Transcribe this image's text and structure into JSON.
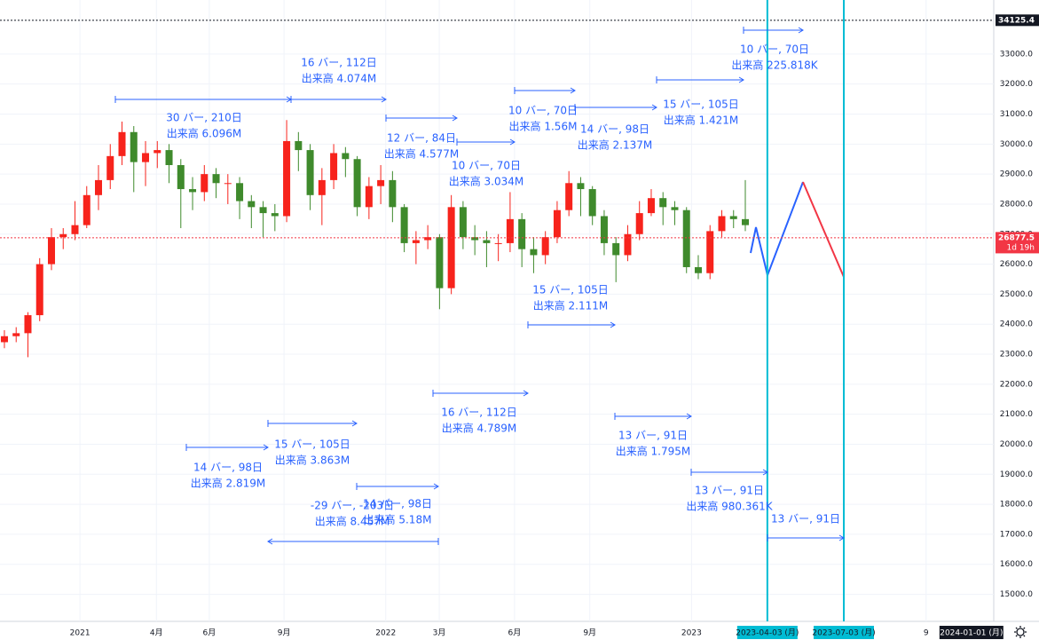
{
  "chart_data": {
    "type": "candlestick",
    "x": [
      0.75,
      2.75,
      4.75,
      6.75,
      8.75,
      10.75,
      12.75,
      14.75,
      16.75,
      18.75,
      20.75,
      22.75,
      24.75,
      26.75,
      28.75,
      30.75,
      32.75,
      34.75,
      36.75,
      38.75,
      40.75,
      42.75,
      44.75,
      46.75,
      48.75,
      50.75,
      52.75,
      54.75,
      56.75,
      58.75,
      60.75,
      62.75,
      64.75,
      66.75,
      68.75,
      70.75,
      72.75,
      74.75,
      76.75,
      78.75,
      80.75,
      82.75,
      84.75,
      86.75,
      88.75,
      90.75,
      92.75,
      94.75,
      96.75,
      98.75,
      100.75,
      102.75,
      104.75,
      106.75,
      108.75,
      110.75,
      112.75,
      114.75,
      116.75,
      118.75,
      120.75,
      122.75,
      124.75,
      126.75
    ],
    "open": [
      23400,
      23600,
      23700,
      24300,
      26000,
      26900,
      27000,
      27300,
      28300,
      28800,
      29600,
      30400,
      29400,
      29700,
      29800,
      29300,
      28500,
      28400,
      29000,
      28700,
      28700,
      28100,
      27900,
      27700,
      27600,
      30100,
      29800,
      28300,
      28800,
      29700,
      29500,
      27900,
      28600,
      28800,
      27900,
      26700,
      26800,
      26900,
      25200,
      27900,
      26900,
      26800,
      26700,
      26700,
      27500,
      26500,
      26300,
      26900,
      27800,
      28700,
      28500,
      27600,
      26700,
      26300,
      27000,
      27700,
      28200,
      27900,
      27800,
      25900,
      25700,
      27100,
      27600,
      27500
    ],
    "high": [
      23800,
      23900,
      24400,
      26200,
      27200,
      27200,
      28100,
      28600,
      29300,
      30000,
      30750,
      30600,
      30100,
      30100,
      30000,
      29500,
      28900,
      29300,
      29200,
      29000,
      28900,
      28300,
      28100,
      28000,
      30800,
      30400,
      30000,
      29200,
      30000,
      29900,
      29600,
      28900,
      29300,
      29100,
      28000,
      27100,
      27300,
      27000,
      28300,
      28100,
      27300,
      27100,
      27000,
      28400,
      27700,
      26900,
      27100,
      28100,
      29100,
      28900,
      28600,
      27800,
      26900,
      27300,
      28100,
      28500,
      28400,
      28100,
      27900,
      26300,
      27300,
      27800,
      27800,
      28800
    ],
    "low": [
      23200,
      23400,
      22900,
      24100,
      25800,
      26500,
      26800,
      27200,
      27800,
      28500,
      29300,
      28400,
      28600,
      29200,
      28700,
      27200,
      27800,
      28100,
      28200,
      28000,
      27500,
      27200,
      26900,
      27100,
      27400,
      29100,
      27800,
      27300,
      28500,
      28900,
      27600,
      27500,
      28000,
      27400,
      26400,
      26000,
      26500,
      24500,
      25000,
      26500,
      26300,
      25900,
      26100,
      26400,
      25900,
      25700,
      26000,
      26700,
      27600,
      27600,
      27300,
      26300,
      25400,
      26100,
      26800,
      27600,
      27300,
      27300,
      25700,
      25500,
      25500,
      26900,
      27200,
      27100
    ],
    "close": [
      23600,
      23700,
      24300,
      26000,
      26900,
      27000,
      27300,
      28300,
      28800,
      29600,
      30400,
      29400,
      29700,
      29800,
      29300,
      28500,
      28400,
      29000,
      28700,
      28700,
      28100,
      27900,
      27700,
      27600,
      30100,
      29800,
      28300,
      28800,
      29700,
      29500,
      27900,
      28600,
      28800,
      27900,
      26700,
      26800,
      26900,
      25200,
      27900,
      26900,
      26800,
      26700,
      26700,
      27500,
      26500,
      26300,
      26900,
      27800,
      28700,
      28500,
      27600,
      26700,
      26300,
      27000,
      27700,
      28200,
      27900,
      27800,
      25900,
      25700,
      27100,
      27600,
      27500,
      27300
    ],
    "up_color": "#f7231c",
    "down_color": "#3f8a2c",
    "xlim": [
      0,
      169
    ],
    "xticks": [
      {
        "value": 13.6,
        "label": "2021"
      },
      {
        "value": 26.6,
        "label": "4月"
      },
      {
        "value": 35.6,
        "label": "6月"
      },
      {
        "value": 48.3,
        "label": "9月"
      },
      {
        "value": 65.6,
        "label": "2022"
      },
      {
        "value": 74.7,
        "label": "3月"
      },
      {
        "value": 87.5,
        "label": "6月"
      },
      {
        "value": 100.3,
        "label": "9月"
      },
      {
        "value": 117.6,
        "label": "2023"
      },
      {
        "value": 157.5,
        "label": "9"
      }
    ],
    "ylim": [
      14100,
      34800
    ],
    "yticks": [
      {
        "value": 15000,
        "label": "15000.0"
      },
      {
        "value": 16000,
        "label": "16000.0"
      },
      {
        "value": 17000,
        "label": "17000.0"
      },
      {
        "value": 18000,
        "label": "18000.0"
      },
      {
        "value": 19000,
        "label": "19000.0"
      },
      {
        "value": 20000,
        "label": "20000.0"
      },
      {
        "value": 21000,
        "label": "21000.0"
      },
      {
        "value": 22000,
        "label": "22000.0"
      },
      {
        "value": 23000,
        "label": "23000.0"
      },
      {
        "value": 24000,
        "label": "24000.0"
      },
      {
        "value": 25000,
        "label": "25000.0"
      },
      {
        "value": 26000,
        "label": "26000.0"
      },
      {
        "value": 27000,
        "label": "27000.0"
      },
      {
        "value": 28000,
        "label": "28000.0"
      },
      {
        "value": 29000,
        "label": "29000.0"
      },
      {
        "value": 30000,
        "label": "30000.0"
      },
      {
        "value": 31000,
        "label": "31000.0"
      },
      {
        "value": 32000,
        "label": "32000.0"
      },
      {
        "value": 33000,
        "label": "33000.0"
      }
    ],
    "grid": true,
    "price_lines": [
      {
        "value": 34125.4,
        "label": "34125.4",
        "color": "#131722"
      },
      {
        "value": 26877.5,
        "label": "26877.5",
        "sublabel": "1d 19h",
        "color": "#f23645"
      }
    ],
    "vertical_lines": [
      {
        "value": 130.5,
        "label": "2023-04-03 (月)"
      },
      {
        "value": 143.5,
        "label": "2023-07-03 (月)"
      }
    ],
    "vertical_line_color": "#00bcd4",
    "x_cursor": {
      "value": 165.2,
      "label": "2024-01-01 (月)"
    },
    "measurements": [
      {
        "lines": [
          "30 バー, 210日",
          "出来高 6.096M"
        ]
      },
      {
        "lines": [
          "16 バー, 112日",
          "出来高 4.074M"
        ]
      },
      {
        "lines": [
          "12 バー, 84日",
          "出来高 4.577M"
        ]
      },
      {
        "lines": [
          "10 バー, 70日",
          "出来高 3.034M"
        ]
      },
      {
        "lines": [
          "10 バー, 70日",
          "出来高 1.56M"
        ]
      },
      {
        "lines": [
          "14 バー, 98日",
          "出来高 2.137M"
        ]
      },
      {
        "lines": [
          "15 バー, 105日",
          "出来高 1.421M"
        ]
      },
      {
        "lines": [
          "10 バー, 70日",
          "出来高 225.818K"
        ]
      },
      {
        "lines": [
          "15 バー, 105日",
          "出来高 2.111M"
        ]
      },
      {
        "lines": [
          "16 バー, 112日",
          "出来高 4.789M"
        ]
      },
      {
        "lines": [
          "13 バー, 91日",
          "出来高 1.795M"
        ]
      },
      {
        "lines": [
          "13 バー, 91日",
          "出来高 980.361K"
        ]
      },
      {
        "lines": [
          "13 バー, 91日"
        ]
      },
      {
        "lines": [
          "15 バー, 105日",
          "出来高 3.863M"
        ]
      },
      {
        "lines": [
          "14 バー, 98日",
          "出来高 2.819M"
        ]
      },
      {
        "lines": [
          "-29 バー, -203日",
          "出来高 8.457M"
        ]
      },
      {
        "lines": [
          "14 バー, 98日",
          "出来高 5.18M"
        ]
      }
    ]
  }
}
